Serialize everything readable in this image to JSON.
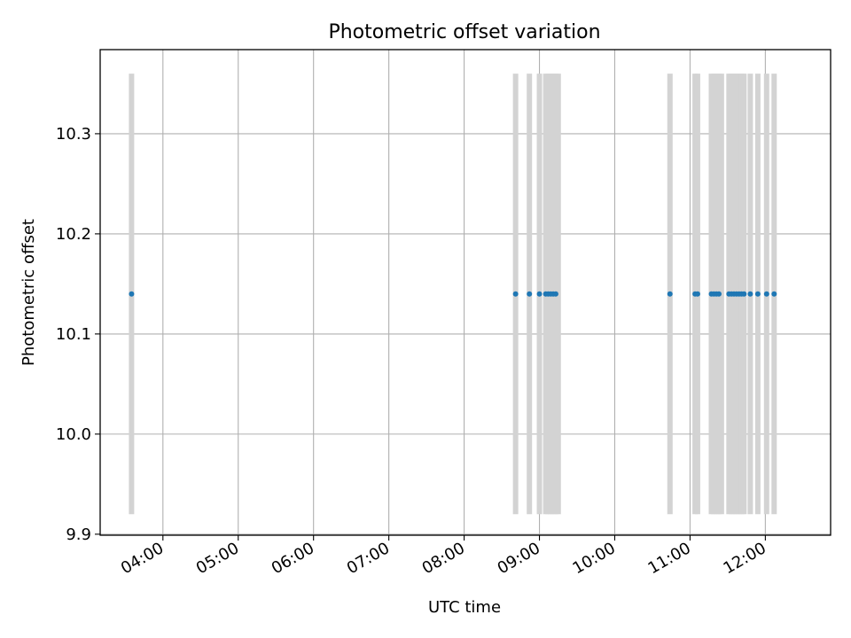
{
  "chart_data": {
    "type": "scatter",
    "title": "Photometric offset variation",
    "xlabel": "UTC time",
    "ylabel": "Photometric offset",
    "x_axis_type": "time",
    "xlim": [
      "03:10",
      "12:52"
    ],
    "ylim": [
      9.899,
      10.384
    ],
    "grid": true,
    "legend": "none",
    "x_ticks": [
      "04:00",
      "05:00",
      "06:00",
      "07:00",
      "08:00",
      "09:00",
      "10:00",
      "11:00",
      "12:00"
    ],
    "y_ticks": [
      9.9,
      10.0,
      10.1,
      10.2,
      10.3
    ],
    "y_tick_labels": [
      "9.9",
      "10.0",
      "10.1",
      "10.2",
      "10.3"
    ],
    "colors": {
      "points": "#1f77b4",
      "bands": "#d3d3d3",
      "grid": "#b0b0b0"
    },
    "bands": {
      "y_range": [
        9.92,
        10.36
      ],
      "times": [
        "03:35",
        "08:41",
        "08:52",
        "09:00",
        "09:05",
        "09:07",
        "09:09",
        "09:11",
        "09:13",
        "09:15",
        "10:44",
        "11:04",
        "11:06",
        "11:17",
        "11:19",
        "11:21",
        "11:23",
        "11:25",
        "11:31",
        "11:33",
        "11:35",
        "11:37",
        "11:39",
        "11:41",
        "11:43",
        "11:48",
        "11:54",
        "12:01",
        "12:07"
      ]
    },
    "series": [
      {
        "x": [
          "03:35",
          "08:41",
          "08:52",
          "09:00",
          "09:05",
          "09:07",
          "09:09",
          "09:11",
          "09:13",
          "10:44",
          "11:04",
          "11:06",
          "11:17",
          "11:19",
          "11:21",
          "11:23",
          "11:31",
          "11:33",
          "11:35",
          "11:37",
          "11:39",
          "11:41",
          "11:43",
          "11:48",
          "11:54",
          "12:01",
          "12:07"
        ],
        "y": [
          10.14,
          10.14,
          10.14,
          10.14,
          10.14,
          10.14,
          10.14,
          10.14,
          10.14,
          10.14,
          10.14,
          10.14,
          10.14,
          10.14,
          10.14,
          10.14,
          10.14,
          10.14,
          10.14,
          10.14,
          10.14,
          10.14,
          10.14,
          10.14,
          10.14,
          10.14,
          10.14
        ]
      }
    ]
  }
}
